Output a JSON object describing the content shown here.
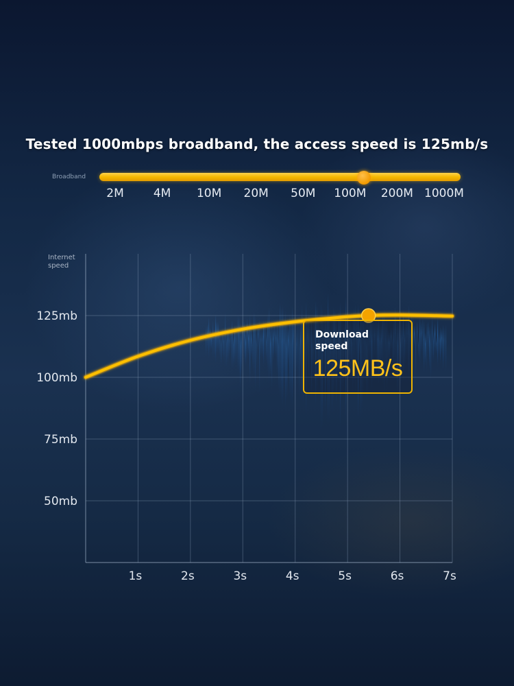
{
  "headline": "Tested 1000mbps broadband, the access speed is 125mb/s",
  "broadband": {
    "label": "Broadband",
    "ticks": [
      "2M",
      "4M",
      "10M",
      "20M",
      "50M",
      "100M",
      "200M",
      "1000M"
    ],
    "selected_index": 5.3,
    "track_color": "#f5b800"
  },
  "download_box": {
    "label": "Download speed",
    "value": "125MB/s"
  },
  "chart_data": {
    "type": "line",
    "title": "",
    "ylabel": "Internet speed",
    "xlabel": "",
    "x_ticks": [
      "1s",
      "2s",
      "3s",
      "4s",
      "5s",
      "6s",
      "7s"
    ],
    "y_ticks": [
      "50mb",
      "75mb",
      "100mb",
      "125mb"
    ],
    "xlim": [
      0,
      7
    ],
    "ylim": [
      25,
      150
    ],
    "series": [
      {
        "name": "Internet speed",
        "color": "#ffc000",
        "x": [
          0,
          1,
          2,
          3,
          4,
          5,
          5.4,
          6,
          7
        ],
        "y": [
          100,
          108.5,
          115,
          119.5,
          122.5,
          124.5,
          125,
          125.2,
          124.8
        ]
      }
    ],
    "highlight_point": {
      "x": 5.4,
      "y": 125
    }
  }
}
